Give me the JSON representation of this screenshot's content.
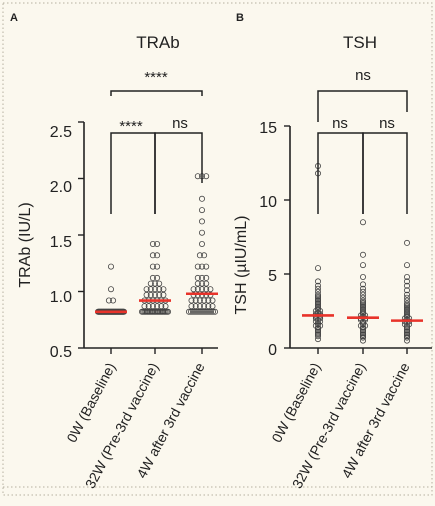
{
  "colors": {
    "background": "#fbf8ee",
    "median": "#e8332a",
    "points": "#444444",
    "axis": "#222222"
  },
  "chart_data": [
    {
      "panel": "A",
      "type": "scatter",
      "title": "TRAb",
      "ylabel": "TRAb (IU/L)",
      "ylim": [
        0.5,
        2.5
      ],
      "yticks": [
        "0.5",
        "1.0",
        "1.5",
        "2.0",
        "2.5"
      ],
      "categories": [
        "0W (Baseline)",
        "32W (Pre-3rd vaccine)",
        "4W after 3rd vaccine"
      ],
      "medians": [
        0.82,
        0.92,
        0.98
      ],
      "points": [
        [
          0.82,
          0.82,
          0.82,
          0.82,
          0.82,
          0.82,
          0.82,
          0.82,
          0.82,
          0.82,
          0.82,
          0.82,
          0.82,
          0.82,
          0.82,
          0.82,
          0.82,
          0.82,
          0.82,
          0.82,
          0.82,
          0.82,
          0.82,
          0.82,
          0.82,
          0.82,
          0.82,
          0.82,
          0.82,
          0.82,
          0.82,
          0.82,
          0.82,
          0.82,
          0.82,
          0.82,
          0.82,
          0.82,
          0.82,
          0.82,
          0.82,
          0.82,
          0.82,
          0.82,
          0.82,
          0.82,
          0.82,
          0.82,
          0.82,
          0.82,
          0.92,
          0.92,
          1.02,
          1.22
        ],
        [
          0.82,
          0.82,
          0.82,
          0.82,
          0.82,
          0.82,
          0.82,
          0.82,
          0.82,
          0.82,
          0.82,
          0.82,
          0.82,
          0.82,
          0.82,
          0.82,
          0.82,
          0.82,
          0.82,
          0.82,
          0.82,
          0.82,
          0.87,
          0.87,
          0.87,
          0.87,
          0.87,
          0.87,
          0.92,
          0.92,
          0.92,
          0.92,
          0.92,
          0.92,
          0.97,
          0.97,
          0.97,
          0.97,
          0.97,
          1.02,
          1.02,
          1.02,
          1.02,
          1.02,
          1.07,
          1.07,
          1.07,
          1.12,
          1.12,
          1.22,
          1.22,
          1.32,
          1.32,
          1.42,
          1.42
        ],
        [
          0.82,
          0.82,
          0.82,
          0.82,
          0.82,
          0.82,
          0.82,
          0.82,
          0.82,
          0.82,
          0.82,
          0.82,
          0.82,
          0.82,
          0.87,
          0.87,
          0.87,
          0.87,
          0.87,
          0.87,
          0.92,
          0.92,
          0.92,
          0.92,
          0.92,
          0.92,
          0.97,
          0.97,
          0.97,
          0.97,
          0.97,
          1.02,
          1.02,
          1.02,
          1.02,
          1.02,
          1.07,
          1.07,
          1.07,
          1.12,
          1.12,
          1.12,
          1.22,
          1.22,
          1.22,
          1.32,
          1.32,
          1.42,
          1.52,
          1.62,
          1.72,
          1.82,
          2.02,
          2.02,
          2.02
        ]
      ],
      "comparisons": [
        {
          "from": 0,
          "to": 1,
          "label": "****"
        },
        {
          "from": 1,
          "to": 2,
          "label": "ns"
        },
        {
          "from": 0,
          "to": 2,
          "label": "****"
        }
      ]
    },
    {
      "panel": "B",
      "type": "scatter",
      "title": "TSH",
      "ylabel": "TSH (µIU/mL)",
      "ylim": [
        0,
        15
      ],
      "yticks": [
        "0",
        "5",
        "10",
        "15"
      ],
      "categories": [
        "0W (Baseline)",
        "32W (Pre-3rd vaccine)",
        "4W after 3rd vaccine"
      ],
      "medians": [
        2.2,
        2.05,
        1.85
      ],
      "points": [
        [
          0.6,
          0.8,
          0.9,
          1.0,
          1.1,
          1.2,
          1.3,
          1.4,
          1.5,
          1.5,
          1.6,
          1.7,
          1.8,
          1.8,
          1.9,
          2.0,
          2.0,
          2.1,
          2.1,
          2.2,
          2.2,
          2.3,
          2.3,
          2.4,
          2.5,
          2.5,
          2.6,
          2.7,
          2.8,
          2.9,
          3.0,
          3.1,
          3.2,
          3.3,
          3.4,
          3.5,
          3.6,
          3.8,
          4.0,
          4.2,
          4.5,
          5.4,
          11.8,
          12.3
        ],
        [
          0.5,
          0.7,
          0.8,
          0.9,
          1.0,
          1.1,
          1.2,
          1.3,
          1.4,
          1.5,
          1.5,
          1.6,
          1.7,
          1.8,
          1.9,
          1.9,
          2.0,
          2.0,
          2.1,
          2.2,
          2.2,
          2.3,
          2.4,
          2.5,
          2.6,
          2.7,
          2.8,
          2.9,
          3.0,
          3.1,
          3.2,
          3.4,
          3.6,
          3.8,
          4.0,
          4.3,
          4.8,
          5.6,
          6.3,
          8.5
        ],
        [
          0.5,
          0.7,
          0.8,
          0.9,
          1.0,
          1.1,
          1.2,
          1.3,
          1.4,
          1.5,
          1.6,
          1.6,
          1.7,
          1.8,
          1.8,
          1.9,
          2.0,
          2.0,
          2.1,
          2.2,
          2.3,
          2.4,
          2.5,
          2.6,
          2.7,
          2.8,
          2.9,
          3.0,
          3.2,
          3.4,
          3.6,
          3.9,
          4.2,
          4.5,
          4.8,
          5.6,
          7.1
        ]
      ],
      "comparisons": [
        {
          "from": 0,
          "to": 1,
          "label": "ns"
        },
        {
          "from": 1,
          "to": 2,
          "label": "ns"
        },
        {
          "from": 0,
          "to": 2,
          "label": "ns"
        }
      ]
    }
  ]
}
